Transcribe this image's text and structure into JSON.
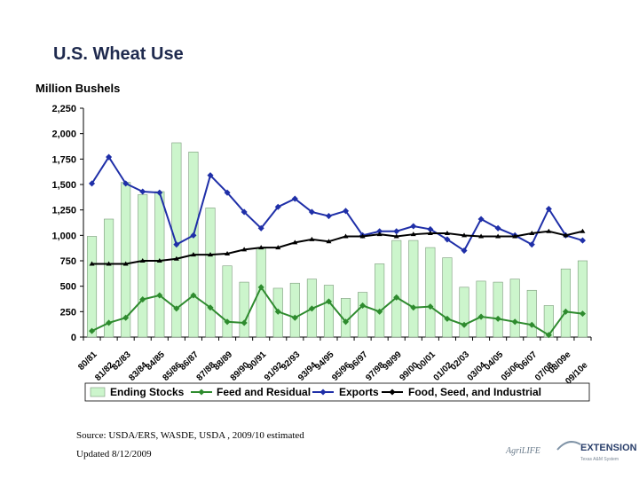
{
  "header": {
    "title": "U.S. Wheat Use",
    "unit_label": "Million Bushels"
  },
  "footer": {
    "source": "Source:  USDA/ERS, WASDE, USDA , 2009/10 estimated",
    "updated": "Updated 8/12/2009"
  },
  "logo": {
    "brand": "AgriLIFE",
    "name": "EXTENSION",
    "tagline": "Texas A&M System"
  },
  "chart_data": {
    "type": "bar",
    "title": "U.S. Wheat Use",
    "ylabel": "Million Bushels",
    "xlabel": "",
    "ylim": [
      0,
      2250
    ],
    "yticks": [
      0,
      250,
      500,
      750,
      1000,
      1250,
      1500,
      1750,
      2000,
      2250
    ],
    "ytick_labels": [
      "0",
      "250",
      "500",
      "750",
      "1,000",
      "1,250",
      "1,500",
      "1,750",
      "2,000",
      "2,250"
    ],
    "grid": false,
    "legend_position": "bottom",
    "categories": [
      "80/81",
      "81/82",
      "82/83",
      "83/84",
      "84/85",
      "85/86",
      "86/87",
      "87/88",
      "88/89",
      "89/90",
      "90/91",
      "91/92",
      "92/93",
      "93/94",
      "94/95",
      "95/96",
      "96/97",
      "97/98",
      "98/99",
      "99/00",
      "00/01",
      "01/02",
      "02/03",
      "03/04",
      "04/05",
      "05/06",
      "06/07",
      "07/08",
      "08/09e",
      "09/10e"
    ],
    "series": [
      {
        "name": "Ending Stocks",
        "kind": "bar",
        "color": "#ccf5cc",
        "values": [
          990,
          1160,
          1520,
          1400,
          1430,
          1910,
          1820,
          1270,
          700,
          540,
          870,
          480,
          530,
          570,
          510,
          380,
          440,
          720,
          950,
          950,
          880,
          780,
          490,
          550,
          540,
          570,
          460,
          310,
          670,
          750
        ]
      },
      {
        "name": "Feed and Residual",
        "kind": "line",
        "color": "#2e8b2e",
        "values": [
          60,
          140,
          190,
          370,
          410,
          280,
          410,
          290,
          150,
          140,
          490,
          250,
          190,
          280,
          350,
          150,
          310,
          250,
          390,
          290,
          300,
          180,
          120,
          200,
          180,
          150,
          120,
          20,
          250,
          230
        ]
      },
      {
        "name": "Exports",
        "kind": "line",
        "color": "#1f2fa8",
        "values": [
          1510,
          1770,
          1510,
          1430,
          1420,
          910,
          1000,
          1590,
          1420,
          1230,
          1070,
          1280,
          1360,
          1230,
          1190,
          1240,
          1000,
          1040,
          1040,
          1090,
          1060,
          960,
          850,
          1160,
          1070,
          1000,
          910,
          1260,
          1000,
          950
        ]
      },
      {
        "name": "Food, Seed, and Industrial",
        "kind": "line",
        "color": "#000000",
        "values": [
          720,
          720,
          720,
          750,
          750,
          770,
          810,
          810,
          820,
          860,
          880,
          880,
          930,
          960,
          940,
          990,
          990,
          1010,
          990,
          1010,
          1020,
          1020,
          1000,
          990,
          990,
          990,
          1020,
          1040,
          1000,
          1040
        ]
      }
    ]
  }
}
